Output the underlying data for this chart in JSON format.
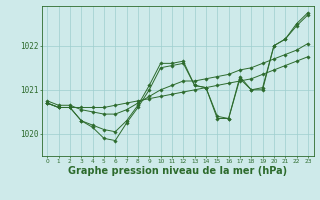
{
  "background_color": "#ceeaea",
  "line_color": "#2d6b2d",
  "grid_color": "#9ecece",
  "xlabel": "Graphe pression niveau de la mer (hPa)",
  "xlabel_fontsize": 7,
  "xlim": [
    -0.5,
    23.5
  ],
  "ylim": [
    1019.5,
    1022.9
  ],
  "yticks": [
    1020,
    1021,
    1022
  ],
  "xticks": [
    0,
    1,
    2,
    3,
    4,
    5,
    6,
    7,
    8,
    9,
    10,
    11,
    12,
    13,
    14,
    15,
    16,
    17,
    18,
    19,
    20,
    21,
    22,
    23
  ],
  "series": [
    [
      1020.7,
      1020.6,
      1020.6,
      1020.3,
      1020.15,
      1019.9,
      1019.85,
      1020.25,
      1020.6,
      1021.0,
      1021.5,
      1021.55,
      1021.6,
      1021.1,
      1021.05,
      1020.35,
      1020.35,
      1021.3,
      1021.0,
      1021.0,
      1022.0,
      1022.15,
      1022.5,
      1022.75
    ],
    [
      1020.7,
      1020.6,
      1020.6,
      1020.3,
      1020.2,
      1020.1,
      1020.05,
      1020.3,
      1020.65,
      1021.1,
      1021.6,
      1021.6,
      1021.65,
      1021.1,
      1021.05,
      1020.4,
      1020.35,
      1021.25,
      1021.0,
      1021.05,
      1022.0,
      1022.15,
      1022.45,
      1022.7
    ],
    [
      1020.75,
      1020.65,
      1020.65,
      1020.55,
      1020.5,
      1020.45,
      1020.45,
      1020.55,
      1020.7,
      1020.85,
      1021.0,
      1021.1,
      1021.2,
      1021.2,
      1021.25,
      1021.3,
      1021.35,
      1021.45,
      1021.5,
      1021.6,
      1021.7,
      1021.8,
      1021.9,
      1022.05
    ],
    [
      1020.7,
      1020.6,
      1020.6,
      1020.6,
      1020.6,
      1020.6,
      1020.65,
      1020.7,
      1020.75,
      1020.8,
      1020.85,
      1020.9,
      1020.95,
      1021.0,
      1021.05,
      1021.1,
      1021.15,
      1021.2,
      1021.25,
      1021.35,
      1021.45,
      1021.55,
      1021.65,
      1021.75
    ]
  ]
}
